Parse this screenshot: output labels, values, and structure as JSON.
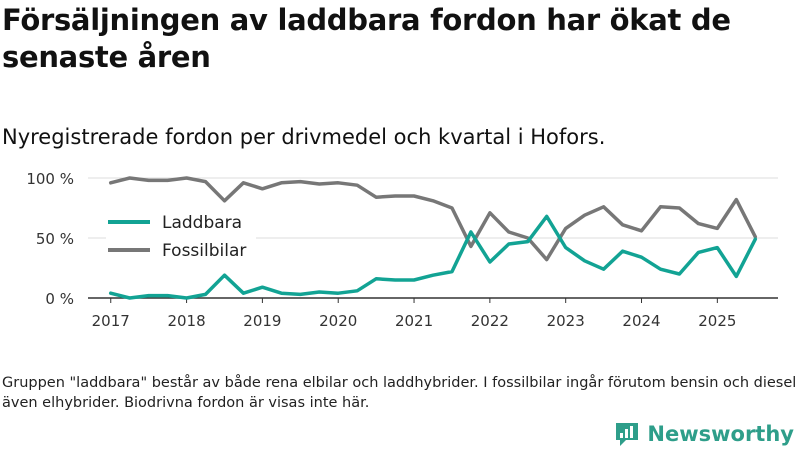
{
  "title": "Försäljningen av laddbara fordon har ökat de senaste åren",
  "subtitle": "Nyregistrerade fordon per drivmedel och kvartal i Hofors.",
  "footnote": "Gruppen \"laddbara\" består av både rena elbilar och laddhybrider. I fossilbilar ingår förutom bensin och diesel även elhybrider. Biodrivna fordon är visas inte här.",
  "brand": {
    "name": "Newsworthy",
    "icon": "bar-chart-logo-icon"
  },
  "colors": {
    "laddbara": "#12a394",
    "fossilbilar": "#777777",
    "brand": "#2e9e8a"
  },
  "chart_data": {
    "type": "line",
    "title": "Nyregistrerade fordon per drivmedel och kvartal i Hofors.",
    "xlabel": "",
    "ylabel": "",
    "ylim": [
      0,
      100
    ],
    "yticks": [
      0,
      50,
      100
    ],
    "ytick_labels": [
      "0 %",
      "50 %",
      "100 %"
    ],
    "xticks": [
      "2017",
      "2018",
      "2019",
      "2020",
      "2021",
      "2022",
      "2023",
      "2024",
      "2025"
    ],
    "x": [
      2017.0,
      2017.25,
      2017.5,
      2017.75,
      2018.0,
      2018.25,
      2018.5,
      2018.75,
      2019.0,
      2019.25,
      2019.5,
      2019.75,
      2020.0,
      2020.25,
      2020.5,
      2020.75,
      2021.0,
      2021.25,
      2021.5,
      2021.75,
      2022.0,
      2022.25,
      2022.5,
      2022.75,
      2023.0,
      2023.25,
      2023.5,
      2023.75,
      2024.0,
      2024.25,
      2024.5,
      2024.75,
      2025.0,
      2025.25,
      2025.5
    ],
    "legend_position": "center-left",
    "series": [
      {
        "name": "Laddbara",
        "color": "#12a394",
        "values": [
          4,
          0,
          2,
          2,
          0,
          3,
          19,
          4,
          9,
          4,
          3,
          5,
          4,
          6,
          16,
          15,
          15,
          19,
          22,
          55,
          30,
          45,
          47,
          68,
          42,
          31,
          24,
          39,
          34,
          24,
          20,
          38,
          42,
          18,
          49
        ]
      },
      {
        "name": "Fossilbilar",
        "color": "#777777",
        "values": [
          96,
          100,
          98,
          98,
          100,
          97,
          81,
          96,
          91,
          96,
          97,
          95,
          96,
          94,
          84,
          85,
          85,
          81,
          75,
          43,
          71,
          55,
          50,
          32,
          58,
          69,
          76,
          61,
          56,
          76,
          75,
          62,
          58,
          82,
          51
        ]
      }
    ]
  }
}
